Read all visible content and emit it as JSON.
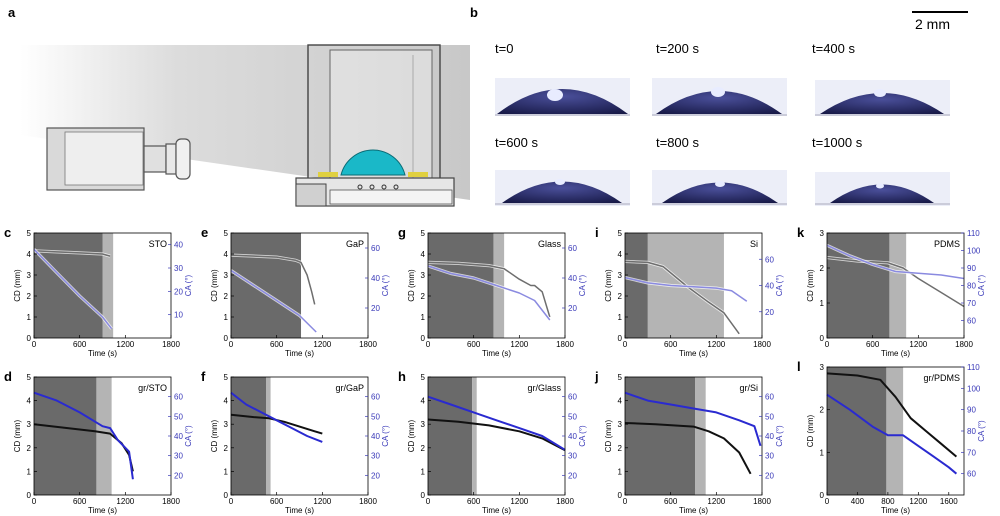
{
  "panel_labels": {
    "a": "a",
    "b": "b"
  },
  "scale_bar": {
    "label": "2 mm"
  },
  "drop_times": [
    "t=0",
    "t=200 s",
    "t=400 s",
    "t=600 s",
    "t=800 s",
    "t=1000 s"
  ],
  "colors": {
    "cd": "#6e6e6e",
    "ca": "#8a8ae0",
    "cd_gr": "#111111",
    "ca_gr": "#2a2ad0",
    "dark_zone": "#6a6a6a",
    "mid_zone": "#b4b4b4",
    "right_axis": "#3838b8",
    "drop": "#1ab8c8"
  },
  "chart_data": [
    {
      "id": "c",
      "title": "STO",
      "type": "line",
      "xlabel": "Time (s)",
      "ylabel": "CD (mm)",
      "y2label": "CA (°)",
      "xlim": [
        0,
        1800
      ],
      "xticks": [
        0,
        600,
        1200,
        1800
      ],
      "ylim": [
        0,
        5
      ],
      "yticks": [
        0,
        1,
        2,
        3,
        4,
        5
      ],
      "y2lim": [
        0,
        45
      ],
      "y2ticks": [
        10,
        20,
        30,
        40
      ],
      "zones": {
        "dark_end": 900,
        "mid_end": 1040
      },
      "series": [
        {
          "name": "CD",
          "axis": "left",
          "style": "cd",
          "x": [
            0,
            300,
            600,
            900,
            1000
          ],
          "y": [
            4.15,
            4.1,
            4.05,
            4.0,
            3.9
          ]
        },
        {
          "name": "CA",
          "axis": "right",
          "style": "ca",
          "x": [
            0,
            300,
            600,
            900,
            1020
          ],
          "y": [
            38,
            28,
            18,
            9,
            4
          ]
        }
      ]
    },
    {
      "id": "e",
      "title": "GaP",
      "type": "line",
      "xlabel": "Time (s)",
      "ylabel": "CD (mm)",
      "y2label": "CA (°)",
      "xlim": [
        0,
        1800
      ],
      "xticks": [
        0,
        600,
        1200,
        1800
      ],
      "ylim": [
        0,
        5
      ],
      "yticks": [
        0,
        1,
        2,
        3,
        4,
        5
      ],
      "y2lim": [
        0,
        70
      ],
      "y2ticks": [
        20,
        40,
        60
      ],
      "zones": {
        "dark_end": 920,
        "mid_end": 920
      },
      "series": [
        {
          "name": "CD",
          "axis": "left",
          "style": "cd",
          "x": [
            0,
            600,
            850,
            920,
            1000,
            1060,
            1100
          ],
          "y": [
            3.95,
            3.85,
            3.7,
            3.6,
            3.0,
            2.2,
            1.6
          ]
        },
        {
          "name": "CA",
          "axis": "right",
          "style": "ca",
          "x": [
            0,
            300,
            600,
            900,
            1120
          ],
          "y": [
            45,
            35,
            25,
            15,
            4
          ]
        }
      ]
    },
    {
      "id": "g",
      "title": "Glass",
      "type": "line",
      "xlabel": "Time (s)",
      "ylabel": "CD (mm)",
      "y2label": "CA (°)",
      "xlim": [
        0,
        1800
      ],
      "xticks": [
        0,
        600,
        1200,
        1800
      ],
      "ylim": [
        0,
        5
      ],
      "yticks": [
        0,
        1,
        2,
        3,
        4,
        5
      ],
      "y2lim": [
        0,
        70
      ],
      "y2ticks": [
        20,
        40,
        60
      ],
      "zones": {
        "dark_end": 860,
        "mid_end": 1000
      },
      "series": [
        {
          "name": "CD",
          "axis": "left",
          "style": "cd",
          "x": [
            0,
            400,
            800,
            1000,
            1200,
            1350,
            1400,
            1500,
            1600
          ],
          "y": [
            3.6,
            3.55,
            3.45,
            3.3,
            2.8,
            2.5,
            2.5,
            2.2,
            1.0
          ]
        },
        {
          "name": "CA",
          "axis": "right",
          "style": "ca",
          "x": [
            0,
            300,
            600,
            900,
            1200,
            1400,
            1600
          ],
          "y": [
            48,
            43,
            40,
            35,
            30,
            25,
            12
          ]
        }
      ]
    },
    {
      "id": "i",
      "title": "Si",
      "type": "line",
      "xlabel": "Time (s)",
      "ylabel": "CD (mm)",
      "y2label": "CA (°)",
      "xlim": [
        0,
        1800
      ],
      "xticks": [
        0,
        600,
        1200,
        1800
      ],
      "ylim": [
        0,
        5
      ],
      "yticks": [
        0,
        1,
        2,
        3,
        4,
        5
      ],
      "y2lim": [
        0,
        80
      ],
      "y2ticks": [
        20,
        40,
        60
      ],
      "zones": {
        "dark_end": 300,
        "mid_end": 1300
      },
      "series": [
        {
          "name": "CD",
          "axis": "left",
          "style": "cd",
          "x": [
            0,
            300,
            500,
            800,
            1100,
            1300,
            1500
          ],
          "y": [
            3.65,
            3.6,
            3.4,
            2.5,
            1.7,
            1.2,
            0.2
          ]
        },
        {
          "name": "CA",
          "axis": "right",
          "style": "ca",
          "x": [
            0,
            300,
            600,
            900,
            1200,
            1400,
            1600
          ],
          "y": [
            46,
            42,
            40,
            39,
            38,
            36,
            28
          ]
        }
      ]
    },
    {
      "id": "k",
      "title": "PDMS",
      "type": "line",
      "xlabel": "Time (s)",
      "ylabel": "CD (mm)",
      "y2label": "CA (°)",
      "xlim": [
        0,
        1800
      ],
      "xticks": [
        0,
        600,
        1200,
        1800
      ],
      "ylim": [
        0,
        3
      ],
      "yticks": [
        0,
        1,
        2,
        3
      ],
      "y2lim": [
        50,
        110
      ],
      "y2ticks": [
        60,
        70,
        80,
        90,
        100,
        110
      ],
      "zones": {
        "dark_end": 820,
        "mid_end": 1040
      },
      "series": [
        {
          "name": "CD",
          "axis": "left",
          "style": "cd",
          "x": [
            0,
            400,
            800,
            1000,
            1200,
            1500,
            1800
          ],
          "y": [
            2.3,
            2.2,
            2.15,
            2.0,
            1.7,
            1.3,
            0.9
          ]
        },
        {
          "name": "CA",
          "axis": "right",
          "style": "ca",
          "x": [
            0,
            300,
            600,
            900,
            1200,
            1500,
            1800
          ],
          "y": [
            103,
            97,
            92,
            88,
            87,
            86,
            84
          ]
        }
      ]
    },
    {
      "id": "d",
      "title": "gr/STO",
      "type": "line",
      "xlabel": "Time (s)",
      "ylabel": "CD (mm)",
      "y2label": "CA (°)",
      "xlim": [
        0,
        1800
      ],
      "xticks": [
        0,
        600,
        1200,
        1800
      ],
      "ylim": [
        0,
        5
      ],
      "yticks": [
        0,
        1,
        2,
        3,
        4,
        5
      ],
      "y2lim": [
        10,
        70
      ],
      "y2ticks": [
        20,
        30,
        40,
        50,
        60
      ],
      "zones": {
        "dark_end": 820,
        "mid_end": 1020
      },
      "series": [
        {
          "name": "CD",
          "axis": "left",
          "style": "cd_gr",
          "x": [
            0,
            400,
            800,
            1000,
            1150,
            1250,
            1300
          ],
          "y": [
            3.0,
            2.85,
            2.7,
            2.6,
            2.2,
            1.7,
            1.0
          ]
        },
        {
          "name": "CA",
          "axis": "right",
          "style": "ca_gr",
          "x": [
            0,
            300,
            600,
            900,
            1000,
            1100,
            1250,
            1300
          ],
          "y": [
            62,
            58,
            52,
            45,
            44,
            38,
            32,
            18
          ]
        }
      ]
    },
    {
      "id": "f",
      "title": "gr/GaP",
      "type": "line",
      "xlabel": "Time (s)",
      "ylabel": "CD (mm)",
      "y2label": "CA (°)",
      "xlim": [
        0,
        1800
      ],
      "xticks": [
        0,
        600,
        1200,
        1800
      ],
      "ylim": [
        0,
        5
      ],
      "yticks": [
        0,
        1,
        2,
        3,
        4,
        5
      ],
      "y2lim": [
        10,
        70
      ],
      "y2ticks": [
        20,
        30,
        40,
        50,
        60
      ],
      "zones": {
        "dark_end": 460,
        "mid_end": 520
      },
      "series": [
        {
          "name": "CD",
          "axis": "left",
          "style": "cd_gr",
          "x": [
            0,
            300,
            500,
            700,
            900,
            1100,
            1200
          ],
          "y": [
            3.4,
            3.3,
            3.25,
            3.1,
            2.9,
            2.7,
            2.6
          ]
        },
        {
          "name": "CA",
          "axis": "right",
          "style": "ca_gr",
          "x": [
            0,
            200,
            400,
            600,
            800,
            1000,
            1200
          ],
          "y": [
            62,
            56,
            52,
            48,
            44,
            40,
            37
          ]
        }
      ]
    },
    {
      "id": "h",
      "title": "gr/Glass",
      "type": "line",
      "xlabel": "Time (s)",
      "ylabel": "CD (mm)",
      "y2label": "CA (°)",
      "xlim": [
        0,
        1800
      ],
      "xticks": [
        0,
        600,
        1200,
        1800
      ],
      "ylim": [
        0,
        5
      ],
      "yticks": [
        0,
        1,
        2,
        3,
        4,
        5
      ],
      "y2lim": [
        10,
        70
      ],
      "y2ticks": [
        20,
        30,
        40,
        50,
        60
      ],
      "zones": {
        "dark_end": 580,
        "mid_end": 640
      },
      "series": [
        {
          "name": "CD",
          "axis": "left",
          "style": "cd_gr",
          "x": [
            0,
            400,
            800,
            1200,
            1500,
            1800
          ],
          "y": [
            3.2,
            3.1,
            2.95,
            2.7,
            2.4,
            1.9
          ]
        },
        {
          "name": "CA",
          "axis": "right",
          "style": "ca_gr",
          "x": [
            0,
            300,
            600,
            900,
            1200,
            1500,
            1800
          ],
          "y": [
            60,
            56,
            52,
            48,
            44,
            40,
            33
          ]
        }
      ]
    },
    {
      "id": "j",
      "title": "gr/Si",
      "type": "line",
      "xlabel": "Time (s)",
      "ylabel": "CD (mm)",
      "y2label": "CA (°)",
      "xlim": [
        0,
        1800
      ],
      "xticks": [
        0,
        600,
        1200,
        1800
      ],
      "ylim": [
        0,
        5
      ],
      "yticks": [
        0,
        1,
        2,
        3,
        4,
        5
      ],
      "y2lim": [
        10,
        70
      ],
      "y2ticks": [
        20,
        30,
        40,
        50,
        60
      ],
      "zones": {
        "dark_end": 920,
        "mid_end": 1060
      },
      "series": [
        {
          "name": "CD",
          "axis": "left",
          "style": "cd_gr",
          "x": [
            0,
            400,
            900,
            1100,
            1300,
            1500,
            1650
          ],
          "y": [
            3.05,
            3.0,
            2.9,
            2.7,
            2.4,
            1.8,
            0.9
          ]
        },
        {
          "name": "CA",
          "axis": "right",
          "style": "ca_gr",
          "x": [
            0,
            300,
            600,
            900,
            1200,
            1500,
            1700,
            1780
          ],
          "y": [
            62,
            58,
            56,
            54,
            52,
            48,
            45,
            35
          ]
        }
      ]
    },
    {
      "id": "l",
      "title": "gr/PDMS",
      "type": "line",
      "xlabel": "Time (s)",
      "ylabel": "CD (mm)",
      "y2label": "CA (°)",
      "xlim": [
        0,
        1800
      ],
      "xticks": [
        0,
        400,
        800,
        1200,
        1600
      ],
      "ylim": [
        0,
        3
      ],
      "yticks": [
        0,
        1,
        2,
        3
      ],
      "y2lim": [
        50,
        110
      ],
      "y2ticks": [
        60,
        70,
        80,
        90,
        100,
        110
      ],
      "zones": {
        "dark_end": 780,
        "mid_end": 1000
      },
      "series": [
        {
          "name": "CD",
          "axis": "left",
          "style": "cd_gr",
          "x": [
            0,
            400,
            700,
            900,
            1100,
            1300,
            1500,
            1700
          ],
          "y": [
            2.85,
            2.8,
            2.7,
            2.3,
            1.8,
            1.5,
            1.2,
            0.9
          ]
        },
        {
          "name": "CA",
          "axis": "right",
          "style": "ca_gr",
          "x": [
            0,
            300,
            600,
            800,
            1000,
            1200,
            1400,
            1600,
            1700
          ],
          "y": [
            97,
            90,
            82,
            78,
            78,
            73,
            68,
            63,
            60
          ]
        }
      ]
    }
  ]
}
